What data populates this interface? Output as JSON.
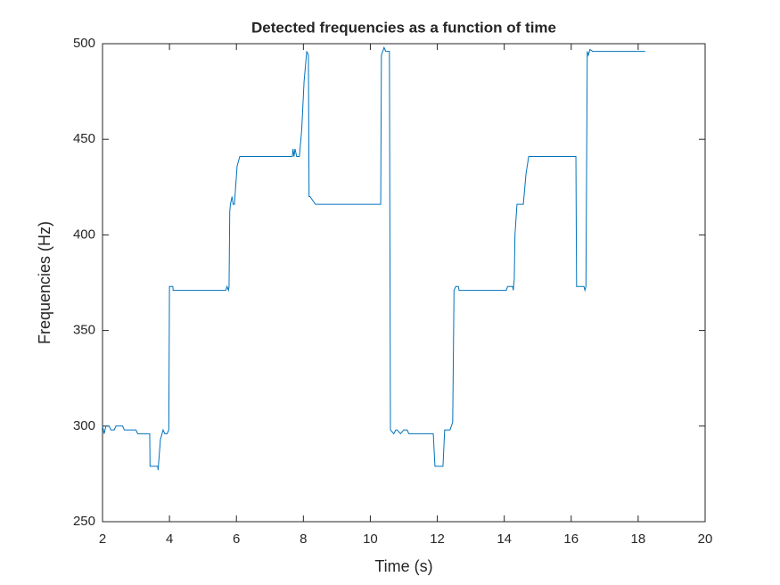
{
  "chart_data": {
    "type": "line",
    "title": "Detected frequencies as a function of time",
    "x_label": "Time (s)",
    "y_label": "Frequencies (Hz)",
    "x": [
      2.0,
      2.05,
      2.1,
      2.2,
      2.25,
      2.35,
      2.4,
      2.6,
      2.65,
      3.0,
      3.05,
      3.41,
      3.42,
      3.65,
      3.66,
      3.73,
      3.81,
      3.86,
      3.93,
      3.98,
      4.0,
      4.1,
      4.11,
      5.68,
      5.72,
      5.76,
      5.78,
      5.8,
      5.82,
      5.87,
      5.9,
      5.94,
      6.02,
      6.1,
      7.67,
      7.69,
      7.72,
      7.75,
      7.8,
      7.88,
      7.95,
      8.02,
      8.1,
      8.15,
      8.17,
      8.2,
      8.36,
      8.42,
      10.31,
      10.33,
      10.41,
      10.46,
      10.57,
      10.6,
      10.7,
      10.76,
      10.8,
      10.9,
      11.0,
      11.1,
      11.15,
      11.88,
      11.93,
      12.17,
      12.22,
      12.38,
      12.46,
      12.5,
      12.55,
      12.63,
      12.65,
      14.06,
      14.1,
      14.25,
      14.27,
      14.3,
      14.32,
      14.38,
      14.57,
      14.65,
      14.73,
      16.14,
      16.16,
      16.38,
      16.41,
      16.44,
      16.48,
      16.51,
      16.56,
      16.64,
      18.21
    ],
    "series": [
      {
        "color": "#0072bd",
        "values": [
          300,
          296,
          300,
          300,
          298,
          298,
          300,
          300,
          298,
          298,
          296,
          296,
          279,
          279,
          277,
          293,
          298,
          296,
          296,
          298,
          373,
          373,
          371,
          371,
          373,
          371,
          373,
          412,
          416,
          420,
          416,
          416,
          436,
          441,
          441,
          445,
          441,
          445,
          441,
          441,
          455,
          480,
          496,
          494,
          420,
          420,
          416,
          416,
          416,
          494,
          498,
          496,
          496,
          298,
          296,
          298,
          298,
          296,
          298,
          298,
          296,
          296,
          279,
          279,
          298,
          298,
          302,
          371,
          373,
          373,
          371,
          371,
          373,
          373,
          371,
          377,
          400,
          416,
          416,
          432,
          441,
          441,
          373,
          373,
          371,
          373,
          496,
          494,
          497,
          496,
          496
        ]
      }
    ],
    "xlim": [
      2,
      20
    ],
    "xticks": [
      2,
      4,
      6,
      8,
      10,
      12,
      14,
      16,
      18,
      20
    ],
    "ylim": [
      250,
      500
    ],
    "yticks": [
      250,
      300,
      350,
      400,
      450,
      500
    ],
    "grid": false
  }
}
